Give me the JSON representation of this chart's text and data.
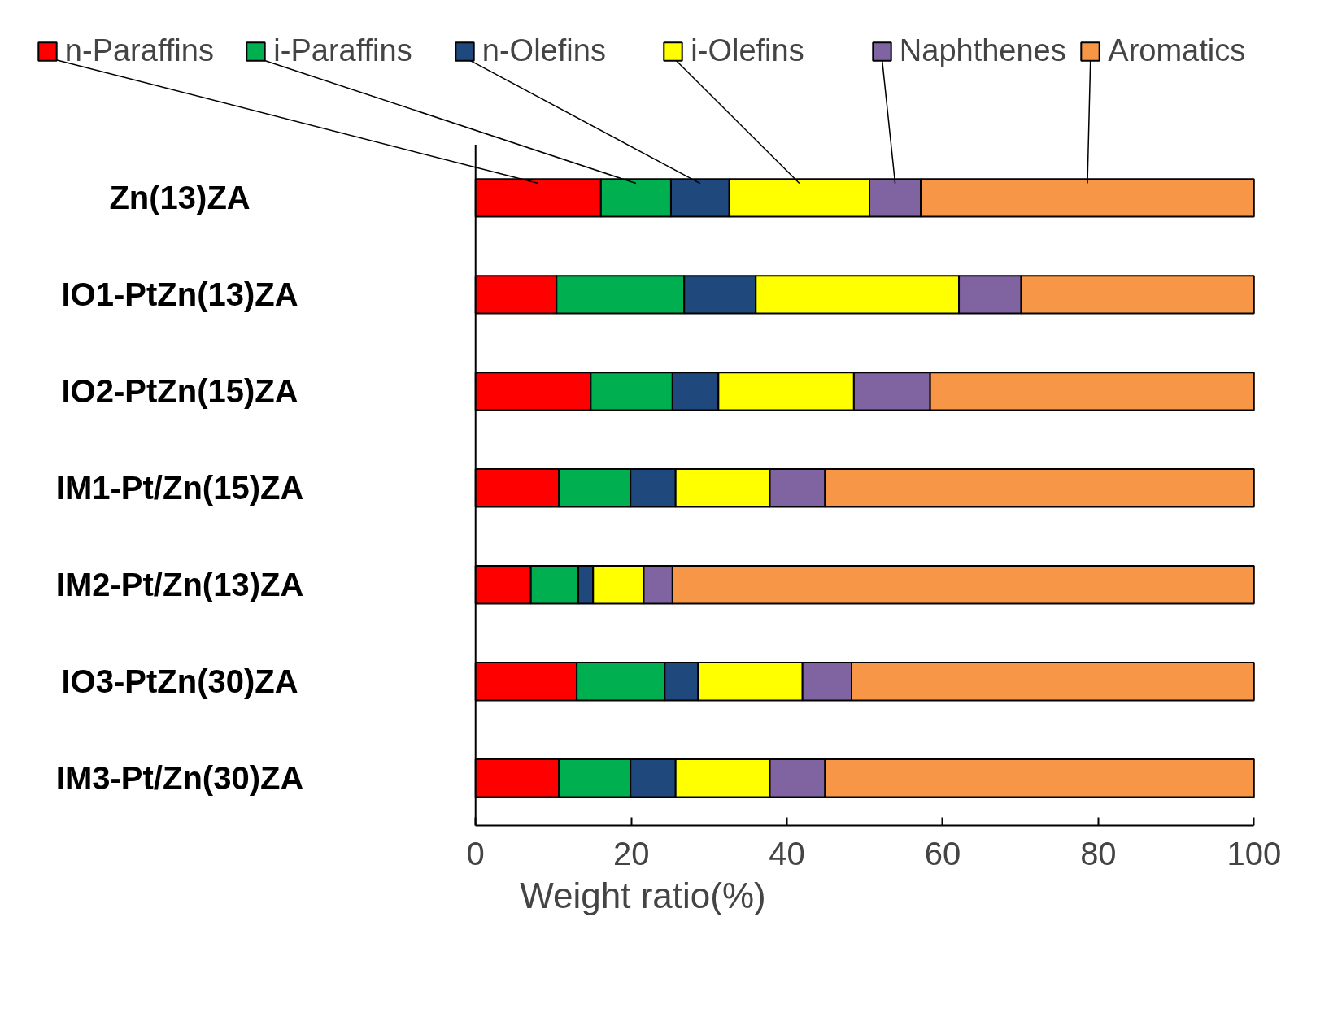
{
  "chart_data": {
    "type": "bar",
    "orientation": "horizontal",
    "stacked": true,
    "xlabel": "Weight ratio(%)",
    "legend": "top",
    "categories": [
      "Zn(13)ZA",
      "IO1-PtZn(13)ZA",
      "IO2-PtZn(15)ZA",
      "IM1-Pt/Zn(15)ZA",
      "IM2-Pt/Zn(13)ZA",
      "IO3-PtZn(30)ZA",
      "IM3-Pt/Zn(30)ZA"
    ],
    "xlim": [
      0,
      100
    ],
    "xticks": [
      0,
      20,
      40,
      60,
      80,
      100
    ],
    "series": [
      {
        "name": "n-Paraffins",
        "color": "#ff0000",
        "values": [
          16.1,
          10.4,
          14.8,
          10.7,
          7.1,
          13.0,
          10.7
        ]
      },
      {
        "name": "i-Paraffins",
        "color": "#00b050",
        "values": [
          9.0,
          16.4,
          10.5,
          9.2,
          6.1,
          11.3,
          9.2
        ]
      },
      {
        "name": "n-Olefins",
        "color": "#1f497d",
        "values": [
          7.5,
          9.2,
          5.9,
          5.8,
          1.9,
          4.3,
          5.8
        ]
      },
      {
        "name": "i-Olefins",
        "color": "#ffff00",
        "values": [
          18.0,
          26.1,
          17.4,
          12.1,
          6.5,
          13.4,
          12.1
        ]
      },
      {
        "name": "Naphthenes",
        "color": "#8064a2",
        "values": [
          6.6,
          8.0,
          9.8,
          7.1,
          3.7,
          6.3,
          7.1
        ]
      },
      {
        "name": "Aromatics",
        "color": "#f79646",
        "values": [
          42.8,
          29.9,
          41.6,
          55.1,
          74.7,
          51.7,
          55.1
        ]
      }
    ]
  }
}
